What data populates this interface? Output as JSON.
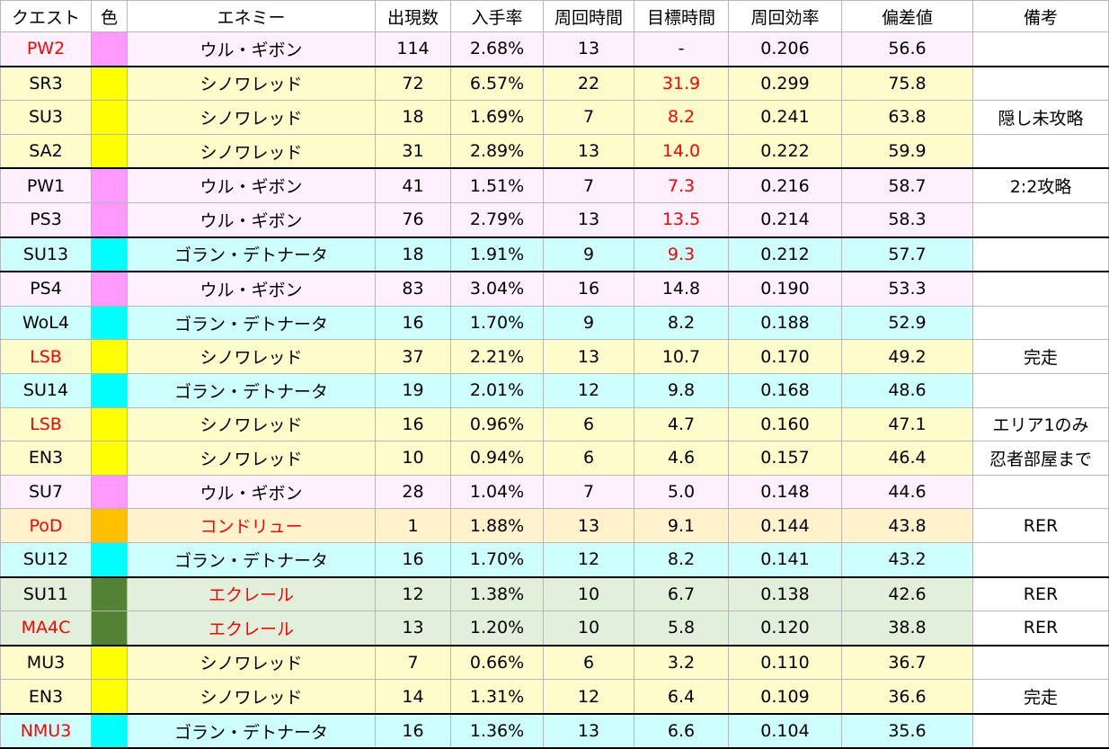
{
  "headers": [
    "クエスト",
    "色",
    "エネミー",
    "出現数",
    "入手率",
    "周回時間",
    "目標時間",
    "周回効率",
    "偏差値",
    "備考"
  ],
  "colors": {
    "pink_bg": "#fff0fd",
    "yellow_bg": "#fffccc",
    "cyan_bg": "#ccfffe",
    "orange_bg": "#fff2cc",
    "green_bg": "#e2efda",
    "pink_swatch": "#ff99ff",
    "yellow_swatch": "#ffff00",
    "cyan_swatch": "#00ffff",
    "orange_swatch": "#ffc000",
    "green_swatch": "#548235",
    "highlight_text": "#ff0000"
  },
  "rows": [
    {
      "quest": "PW2",
      "enemy": "ウル・ギボン",
      "count": "114",
      "rate": "2.68%",
      "lap": "13",
      "target": "-",
      "eff": "0.206",
      "dev": "56.6",
      "note": "",
      "color": "pink"
    },
    {
      "quest": "SR3",
      "enemy": "シノワレッド",
      "count": "72",
      "rate": "6.57%",
      "lap": "22",
      "target": "31.9",
      "eff": "0.299",
      "dev": "75.8",
      "note": "",
      "color": "yellow"
    },
    {
      "quest": "SU3",
      "enemy": "シノワレッド",
      "count": "18",
      "rate": "1.69%",
      "lap": "7",
      "target": "8.2",
      "eff": "0.241",
      "dev": "63.8",
      "note": "隠し未攻略",
      "color": "yellow"
    },
    {
      "quest": "SA2",
      "enemy": "シノワレッド",
      "count": "31",
      "rate": "2.89%",
      "lap": "13",
      "target": "14.0",
      "eff": "0.222",
      "dev": "59.9",
      "note": "",
      "color": "yellow"
    },
    {
      "quest": "PW1",
      "enemy": "ウル・ギボン",
      "count": "41",
      "rate": "1.51%",
      "lap": "7",
      "target": "7.3",
      "eff": "0.216",
      "dev": "58.7",
      "note": "2:2攻略",
      "color": "pink"
    },
    {
      "quest": "PS3",
      "enemy": "ウル・ギボン",
      "count": "76",
      "rate": "2.79%",
      "lap": "13",
      "target": "13.5",
      "eff": "0.214",
      "dev": "58.3",
      "note": "",
      "color": "pink"
    },
    {
      "quest": "SU13",
      "enemy": "ゴラン・デトナータ",
      "count": "18",
      "rate": "1.91%",
      "lap": "9",
      "target": "9.3",
      "eff": "0.212",
      "dev": "57.7",
      "note": "",
      "color": "cyan"
    },
    {
      "quest": "PS4",
      "enemy": "ウル・ギボン",
      "count": "83",
      "rate": "3.04%",
      "lap": "16",
      "target": "14.8",
      "eff": "0.190",
      "dev": "53.3",
      "note": "",
      "color": "pink"
    },
    {
      "quest": "WoL4",
      "enemy": "ゴラン・デトナータ",
      "count": "16",
      "rate": "1.70%",
      "lap": "9",
      "target": "8.2",
      "eff": "0.188",
      "dev": "52.9",
      "note": "",
      "color": "cyan"
    },
    {
      "quest": "LSB",
      "enemy": "シノワレッド",
      "count": "37",
      "rate": "2.21%",
      "lap": "13",
      "target": "10.7",
      "eff": "0.170",
      "dev": "49.2",
      "note": "完走",
      "color": "yellow"
    },
    {
      "quest": "SU14",
      "enemy": "ゴラン・デトナータ",
      "count": "19",
      "rate": "2.01%",
      "lap": "12",
      "target": "9.8",
      "eff": "0.168",
      "dev": "48.6",
      "note": "",
      "color": "cyan"
    },
    {
      "quest": "LSB",
      "enemy": "シノワレッド",
      "count": "16",
      "rate": "0.96%",
      "lap": "6",
      "target": "4.7",
      "eff": "0.160",
      "dev": "47.1",
      "note": "エリア1のみ",
      "color": "yellow"
    },
    {
      "quest": "EN3",
      "enemy": "シノワレッド",
      "count": "10",
      "rate": "0.94%",
      "lap": "6",
      "target": "4.6",
      "eff": "0.157",
      "dev": "46.4",
      "note": "忍者部屋まで",
      "color": "yellow"
    },
    {
      "quest": "SU7",
      "enemy": "ウル・ギボン",
      "count": "28",
      "rate": "1.04%",
      "lap": "7",
      "target": "5.0",
      "eff": "0.148",
      "dev": "44.6",
      "note": "",
      "color": "pink"
    },
    {
      "quest": "PoD",
      "enemy": "コンドリュー",
      "count": "1",
      "rate": "1.88%",
      "lap": "13",
      "target": "9.1",
      "eff": "0.144",
      "dev": "43.8",
      "note": "RER",
      "color": "orange"
    },
    {
      "quest": "SU12",
      "enemy": "ゴラン・デトナータ",
      "count": "16",
      "rate": "1.70%",
      "lap": "12",
      "target": "8.2",
      "eff": "0.141",
      "dev": "43.2",
      "note": "",
      "color": "cyan"
    },
    {
      "quest": "SU11",
      "enemy": "エクレール",
      "count": "12",
      "rate": "1.38%",
      "lap": "10",
      "target": "6.7",
      "eff": "0.138",
      "dev": "42.6",
      "note": "RER",
      "color": "green"
    },
    {
      "quest": "MA4C",
      "enemy": "エクレール",
      "count": "13",
      "rate": "1.20%",
      "lap": "10",
      "target": "5.8",
      "eff": "0.120",
      "dev": "38.8",
      "note": "RER",
      "color": "green"
    },
    {
      "quest": "MU3",
      "enemy": "シノワレッド",
      "count": "7",
      "rate": "0.66%",
      "lap": "6",
      "target": "3.2",
      "eff": "0.110",
      "dev": "36.7",
      "note": "",
      "color": "yellow"
    },
    {
      "quest": "EN3",
      "enemy": "シノワレッド",
      "count": "14",
      "rate": "1.31%",
      "lap": "12",
      "target": "6.4",
      "eff": "0.109",
      "dev": "36.6",
      "note": "完走",
      "color": "yellow"
    },
    {
      "quest": "NMU3",
      "enemy": "ゴラン・デトナータ",
      "count": "16",
      "rate": "1.36%",
      "lap": "13",
      "target": "6.6",
      "eff": "0.104",
      "dev": "35.6",
      "note": "",
      "color": "cyan"
    }
  ],
  "red_quests": [
    0,
    9,
    11,
    14,
    17,
    20
  ],
  "red_enemies": [
    14,
    16,
    17
  ],
  "red_targets": [
    1,
    2,
    3,
    4,
    5,
    6
  ],
  "thick_top_rows": [
    1,
    4,
    6,
    7,
    16,
    18,
    20
  ]
}
